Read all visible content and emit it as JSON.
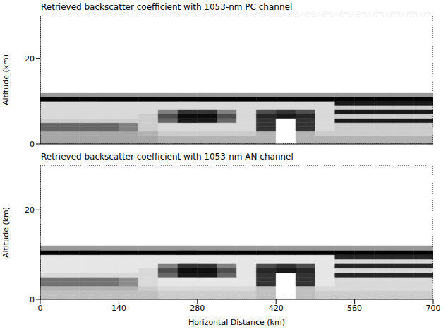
{
  "chart_data": [
    {
      "type": "heatmap",
      "title": "Retrieved backscatter coefficient with 1053-nm PC channel",
      "y_label": "Altitude (km)",
      "xlim": [
        0,
        700
      ],
      "xticks": [
        0,
        140,
        280,
        420,
        560,
        700
      ],
      "ylim": [
        0,
        30
      ],
      "yticks": [
        0,
        20
      ],
      "tick_labels": "y",
      "x_edges": [
        0,
        35,
        70,
        105,
        140,
        175,
        210,
        245,
        280,
        315,
        350,
        385,
        420,
        455,
        490,
        525,
        560,
        595,
        630,
        665,
        700
      ],
      "y_edges": [
        0,
        1,
        2,
        3,
        4,
        5,
        6,
        7,
        8,
        9,
        10,
        11,
        12
      ],
      "cells": [
        [
          0.35,
          0.35,
          0.35,
          0.35,
          0.35,
          0.35,
          0.3,
          0.3,
          0.3,
          0.3,
          0.3,
          0.3,
          0,
          0.3,
          0.3,
          0.3,
          0.3,
          0.3,
          0.3,
          0.3
        ],
        [
          0.35,
          0.35,
          0.35,
          0.35,
          0.35,
          0.35,
          0.3,
          0.3,
          0.3,
          0.3,
          0.3,
          0.3,
          0,
          0.3,
          0.3,
          0.3,
          0.3,
          0.3,
          0.3,
          0.3
        ],
        [
          0.35,
          0.35,
          0.35,
          0.35,
          0.35,
          0.3,
          0.2,
          0.2,
          0.2,
          0.2,
          0.2,
          0.3,
          0,
          0.3,
          0.2,
          0.2,
          0.2,
          0.2,
          0.2,
          0.2
        ],
        [
          0.6,
          0.6,
          0.6,
          0.6,
          0.5,
          0.2,
          0.15,
          0.15,
          0.15,
          0.15,
          0.15,
          0.8,
          0,
          0.8,
          0.15,
          0.2,
          0.2,
          0.2,
          0.2,
          0.2
        ],
        [
          0.6,
          0.6,
          0.6,
          0.6,
          0.5,
          0.2,
          0.15,
          0.15,
          0.15,
          0.15,
          0.15,
          0.8,
          0,
          0.8,
          0.15,
          0.2,
          0.2,
          0.2,
          0.2,
          0.2
        ],
        [
          0.2,
          0.2,
          0.2,
          0.2,
          0.2,
          0.2,
          0.6,
          0.9,
          0.9,
          0.6,
          0.15,
          0.8,
          0,
          0.8,
          0.15,
          0.9,
          0.9,
          0.9,
          0.9,
          0.9
        ],
        [
          0.15,
          0.15,
          0.15,
          0.15,
          0.15,
          0.2,
          0.7,
          0.95,
          0.95,
          0.7,
          0.15,
          0.85,
          0.9,
          0.85,
          0.15,
          0.2,
          0.2,
          0.2,
          0.2,
          0.2
        ],
        [
          0.15,
          0.15,
          0.15,
          0.15,
          0.15,
          0.15,
          0.5,
          0.8,
          0.8,
          0.5,
          0.15,
          0.7,
          0.8,
          0.7,
          0.15,
          0.9,
          0.9,
          0.9,
          0.9,
          0.9
        ],
        [
          0.15,
          0.15,
          0.15,
          0.15,
          0.15,
          0.15,
          0.15,
          0.15,
          0.15,
          0.15,
          0.15,
          0.15,
          0.15,
          0.15,
          0.15,
          0.2,
          0.2,
          0.2,
          0.2,
          0.2
        ],
        [
          0.15,
          0.15,
          0.15,
          0.15,
          0.15,
          0.15,
          0.15,
          0.15,
          0.15,
          0.15,
          0.15,
          0.15,
          0.15,
          0.15,
          0.15,
          0.9,
          0.9,
          0.9,
          0.9,
          0.9
        ],
        [
          1,
          1,
          1,
          1,
          1,
          1,
          1,
          1,
          1,
          1,
          1,
          1,
          1,
          1,
          1,
          1,
          1,
          1,
          1,
          1
        ],
        [
          0.4,
          0.4,
          0.4,
          0.4,
          0.4,
          0.4,
          0.4,
          0.4,
          0.4,
          0.4,
          0.4,
          0.4,
          0.4,
          0.4,
          0.4,
          0.4,
          0.4,
          0.4,
          0.4,
          0.4
        ]
      ]
    },
    {
      "type": "heatmap",
      "title": "Retrieved backscatter coefficient with 1053-nm AN channel",
      "y_label": "Altitude (km)",
      "x_label": "Horizontal Distance (km)",
      "xlim": [
        0,
        700
      ],
      "xticks": [
        0,
        140,
        280,
        420,
        560,
        700
      ],
      "ylim": [
        0,
        30
      ],
      "yticks": [
        0,
        20
      ],
      "x_edges": [
        0,
        35,
        70,
        105,
        140,
        175,
        210,
        245,
        280,
        315,
        350,
        385,
        420,
        455,
        490,
        525,
        560,
        595,
        630,
        665,
        700
      ],
      "y_edges": [
        0,
        1,
        2,
        3,
        4,
        5,
        6,
        7,
        8,
        9,
        10,
        11,
        12
      ],
      "cells": [
        [
          0.25,
          0.25,
          0.25,
          0.25,
          0.25,
          0.25,
          0.2,
          0.2,
          0.2,
          0.2,
          0.2,
          0.25,
          0,
          0.25,
          0.2,
          0.2,
          0.2,
          0.2,
          0.2,
          0.2
        ],
        [
          0.25,
          0.25,
          0.25,
          0.25,
          0.25,
          0.25,
          0.2,
          0.2,
          0.2,
          0.2,
          0.2,
          0.25,
          0,
          0.25,
          0.2,
          0.2,
          0.2,
          0.2,
          0.2,
          0.2
        ],
        [
          0.3,
          0.3,
          0.3,
          0.3,
          0.3,
          0.2,
          0.15,
          0.15,
          0.15,
          0.15,
          0.15,
          0.25,
          0,
          0.25,
          0.15,
          0.15,
          0.15,
          0.15,
          0.15,
          0.15
        ],
        [
          0.55,
          0.55,
          0.55,
          0.55,
          0.45,
          0.15,
          0.1,
          0.1,
          0.1,
          0.1,
          0.1,
          0.8,
          0,
          0.8,
          0.1,
          0.15,
          0.15,
          0.15,
          0.15,
          0.15
        ],
        [
          0.55,
          0.55,
          0.55,
          0.55,
          0.45,
          0.15,
          0.1,
          0.1,
          0.1,
          0.1,
          0.1,
          0.8,
          0,
          0.8,
          0.1,
          0.15,
          0.15,
          0.15,
          0.15,
          0.15
        ],
        [
          0.15,
          0.15,
          0.15,
          0.15,
          0.15,
          0.15,
          0.6,
          0.9,
          0.9,
          0.6,
          0.1,
          0.8,
          0,
          0.8,
          0.1,
          0.85,
          0.85,
          0.85,
          0.85,
          0.85
        ],
        [
          0.1,
          0.1,
          0.1,
          0.1,
          0.1,
          0.15,
          0.7,
          0.95,
          0.95,
          0.7,
          0.1,
          0.85,
          0.9,
          0.85,
          0.1,
          0.15,
          0.15,
          0.15,
          0.15,
          0.15
        ],
        [
          0.1,
          0.1,
          0.1,
          0.1,
          0.1,
          0.1,
          0.5,
          0.8,
          0.8,
          0.5,
          0.1,
          0.7,
          0.8,
          0.7,
          0.1,
          0.85,
          0.85,
          0.85,
          0.85,
          0.85
        ],
        [
          0.1,
          0.1,
          0.1,
          0.1,
          0.1,
          0.1,
          0.1,
          0.1,
          0.1,
          0.1,
          0.1,
          0.1,
          0.1,
          0.1,
          0.1,
          0.15,
          0.15,
          0.15,
          0.15,
          0.15
        ],
        [
          0.1,
          0.1,
          0.1,
          0.1,
          0.1,
          0.1,
          0.1,
          0.1,
          0.1,
          0.1,
          0.1,
          0.1,
          0.1,
          0.1,
          0.1,
          0.85,
          0.85,
          0.85,
          0.85,
          0.85
        ],
        [
          1,
          1,
          1,
          1,
          1,
          1,
          1,
          1,
          1,
          1,
          1,
          1,
          1,
          1,
          1,
          1,
          1,
          1,
          1,
          1
        ],
        [
          0.4,
          0.4,
          0.4,
          0.4,
          0.4,
          0.4,
          0.4,
          0.4,
          0.4,
          0.4,
          0.4,
          0.4,
          0.4,
          0.4,
          0.4,
          0.4,
          0.4,
          0.4,
          0.4,
          0.4
        ]
      ]
    }
  ]
}
